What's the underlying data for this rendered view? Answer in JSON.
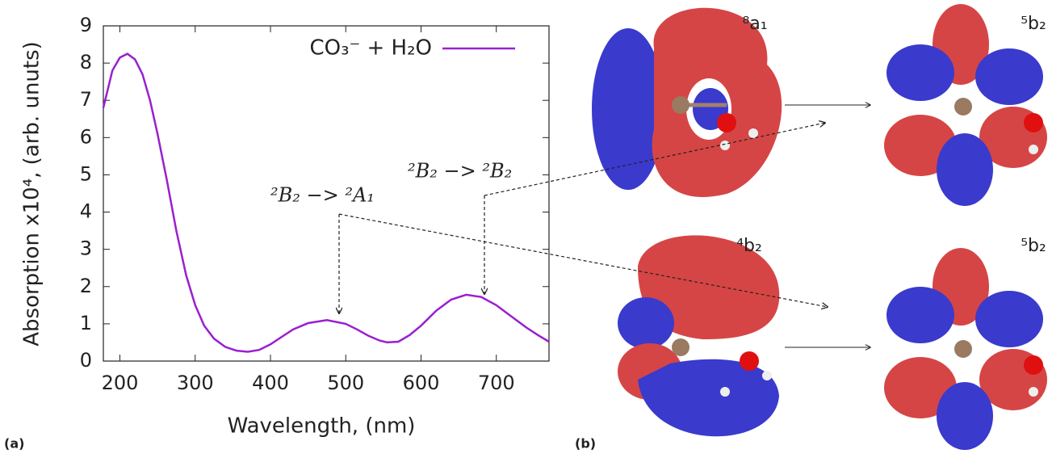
{
  "chart_data": {
    "type": "line",
    "x_label": "Wavelength, (nm)",
    "y_label": "Absorption x10⁴, (arb. unuts)",
    "panel_a": "(a)",
    "panel_b": "(b)",
    "series": [
      {
        "name": "CO₃⁻ + H₂O",
        "color": "#9a1fd0",
        "x": [
          178,
          190,
          200,
          210,
          220,
          230,
          240,
          250,
          262,
          275,
          288,
          300,
          312,
          325,
          340,
          355,
          370,
          385,
          400,
          415,
          430,
          450,
          475,
          500,
          515,
          530,
          545,
          555,
          570,
          585,
          600,
          620,
          640,
          660,
          680,
          700,
          720,
          740,
          755,
          770
        ],
        "values": [
          6.8,
          7.8,
          8.15,
          8.25,
          8.1,
          7.7,
          7.0,
          6.1,
          4.9,
          3.5,
          2.3,
          1.5,
          0.95,
          0.6,
          0.38,
          0.28,
          0.25,
          0.3,
          0.45,
          0.65,
          0.85,
          1.02,
          1.1,
          1.0,
          0.85,
          0.68,
          0.55,
          0.5,
          0.52,
          0.7,
          0.95,
          1.35,
          1.65,
          1.78,
          1.72,
          1.5,
          1.2,
          0.9,
          0.7,
          0.52
        ]
      }
    ],
    "xlim": [
      178,
      770
    ],
    "ylim": [
      0,
      9
    ],
    "xticks": [
      200,
      300,
      400,
      500,
      600,
      700
    ],
    "yticks": [
      0,
      1,
      2,
      3,
      4,
      5,
      6,
      7,
      8,
      9
    ],
    "annotations": [
      "²B₂ −> ²A₁",
      "²B₂ −> ²B₂"
    ],
    "orbital_labels": [
      "⁸a₁",
      "⁵b₂",
      "⁴b₂",
      "⁵b₂"
    ],
    "legend": "upper right"
  }
}
